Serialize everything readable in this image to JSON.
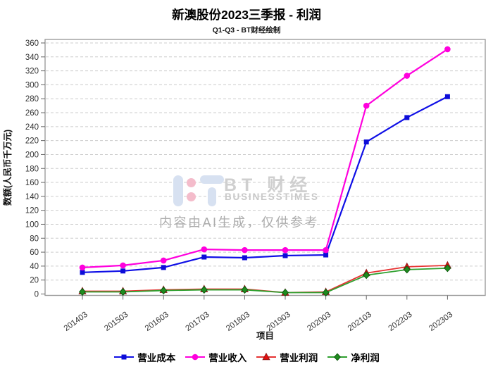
{
  "page": {
    "title": "新澳股份2023三季报 - 利润",
    "subtitle": "Q1-Q3 - BT财经绘制"
  },
  "watermark": {
    "brand": "BT 财经",
    "brand_sub": "BUSINESSTIMES",
    "notice": "内容由AI生成，仅供参考"
  },
  "chart_data": {
    "type": "line",
    "title": "新澳股份2023三季报 - 利润",
    "subtitle": "Q1-Q3 - BT财经绘制",
    "xlabel": "项目",
    "ylabel": "数额(人民币千万元)",
    "ylim": [
      0,
      360
    ],
    "ytick_step": 20,
    "grid": "horizontal-dashed",
    "legend_position": "bottom",
    "categories": [
      "201403",
      "201503",
      "201603",
      "201703",
      "201803",
      "201903",
      "202003",
      "202103",
      "202203",
      "202303"
    ],
    "series": [
      {
        "key": "operating-cost",
        "name": "营业成本",
        "marker": "square",
        "color": "#0f0fe6",
        "marker_color": "#0d0dd8",
        "marker_edge": "#0d0dd8",
        "values": [
          31,
          33,
          38,
          53,
          52,
          55,
          56,
          218,
          253,
          283
        ]
      },
      {
        "key": "operating-revenue",
        "name": "营业收入",
        "marker": "circle",
        "color": "#ff00dd",
        "marker_color": "#ff00dd",
        "marker_edge": "#ff00dd",
        "values": [
          38,
          41,
          48,
          64,
          63,
          63,
          63,
          270,
          313,
          351
        ]
      },
      {
        "key": "operating-profit",
        "name": "营业利润",
        "marker": "triangle-up",
        "color": "#e63232",
        "marker_color": "#e60f0f",
        "marker_edge": "#8c1a1a",
        "values": [
          4,
          4,
          6,
          7,
          7,
          2,
          3,
          30,
          39,
          41
        ]
      },
      {
        "key": "net-profit",
        "name": "净利润",
        "marker": "diamond",
        "color": "#2fa02f",
        "marker_color": "#1f8c1f",
        "marker_edge": "#0f5a0f",
        "values": [
          3,
          3,
          5,
          6,
          6,
          2,
          2,
          27,
          35,
          37
        ]
      }
    ]
  }
}
